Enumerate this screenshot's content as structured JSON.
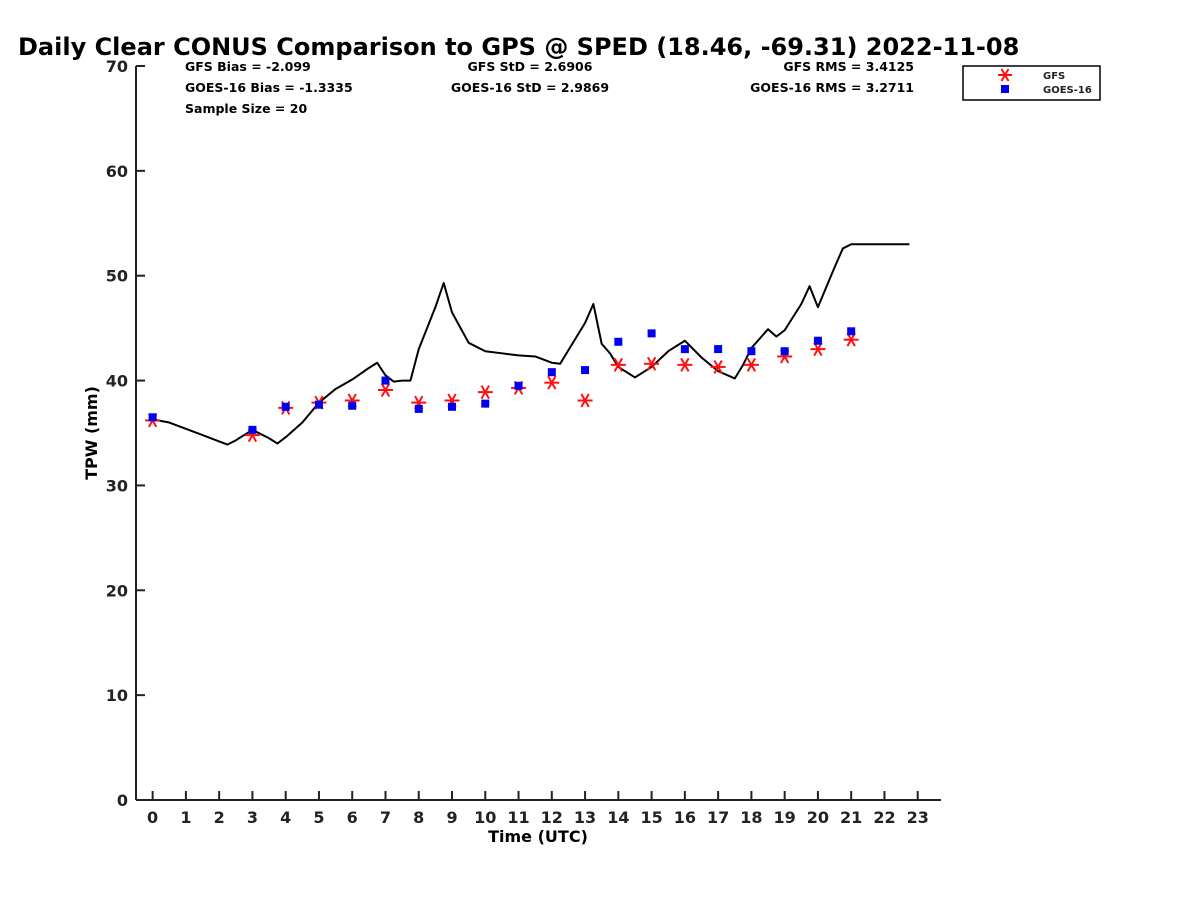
{
  "chart_data": {
    "type": "line",
    "title": "Daily Clear CONUS Comparison to GPS @ SPED (18.46, -69.31) 2022-11-08",
    "xlabel": "Time (UTC)",
    "ylabel": "TPW (mm)",
    "xlim": [
      -0.5,
      23.7
    ],
    "ylim": [
      0,
      70
    ],
    "xticks": [
      0,
      1,
      2,
      3,
      4,
      5,
      6,
      7,
      8,
      9,
      10,
      11,
      12,
      13,
      14,
      15,
      16,
      17,
      18,
      19,
      20,
      21,
      22,
      23
    ],
    "yticks": [
      0,
      10,
      20,
      30,
      40,
      50,
      60,
      70
    ],
    "grid": false,
    "legend_position": "top-right",
    "stats": {
      "gfs_bias": "GFS Bias = -2.099",
      "goes_bias": "GOES-16 Bias = -1.3335",
      "sample_size": "Sample Size = 20",
      "gfs_std": "GFS StD = 2.6906",
      "goes_std": "GOES-16 StD = 2.9869",
      "gfs_rms": "GFS RMS = 3.4125",
      "goes_rms": "GOES-16 RMS = 3.2711"
    },
    "series": [
      {
        "kind": "line",
        "color": "#000000",
        "x": [
          0,
          0.5,
          1,
          1.5,
          2,
          2.25,
          2.5,
          3,
          3.5,
          3.75,
          4,
          4.5,
          5,
          5.5,
          6,
          6.5,
          6.75,
          7,
          7.25,
          7.5,
          7.75,
          8,
          8.5,
          8.75,
          9,
          9.5,
          10,
          10.5,
          11,
          11.5,
          12,
          12.25,
          12.5,
          13,
          13.25,
          13.5,
          13.75,
          14,
          14.5,
          15,
          15.5,
          16,
          16.5,
          17,
          17.5,
          17.75,
          18,
          18.5,
          18.75,
          19,
          19.5,
          19.75,
          20,
          20.5,
          20.75,
          21,
          21.5,
          22,
          22.75
        ],
        "values": [
          36.3,
          36.0,
          35.4,
          34.8,
          34.2,
          33.9,
          34.3,
          35.3,
          34.5,
          34.0,
          34.6,
          36.0,
          37.9,
          39.2,
          40.1,
          41.2,
          41.7,
          40.5,
          39.9,
          40.0,
          40.0,
          43.0,
          47.0,
          49.3,
          46.5,
          43.6,
          42.8,
          42.6,
          42.4,
          42.3,
          41.7,
          41.6,
          42.9,
          45.5,
          47.3,
          43.5,
          42.6,
          41.3,
          40.3,
          41.3,
          42.8,
          43.8,
          42.2,
          40.9,
          40.2,
          41.5,
          43.1,
          44.9,
          44.2,
          44.8,
          47.3,
          49.0,
          47.0,
          50.8,
          52.6,
          53.0,
          53.0,
          53.0,
          53.0
        ]
      },
      {
        "name": "GFS",
        "kind": "scatter",
        "marker": "asterisk",
        "color": "#ff1010",
        "x": [
          0,
          3,
          4,
          5,
          6,
          7,
          8,
          9,
          10,
          11,
          12,
          13,
          14,
          15,
          16,
          17,
          18,
          19,
          20,
          21
        ],
        "values": [
          36.2,
          34.8,
          37.4,
          37.9,
          38.1,
          39.1,
          37.9,
          38.1,
          38.9,
          39.3,
          39.8,
          38.1,
          41.5,
          41.6,
          41.5,
          41.3,
          41.5,
          42.3,
          43.0,
          43.9
        ]
      },
      {
        "name": "GOES-16",
        "kind": "scatter",
        "marker": "square",
        "color": "#0000ee",
        "x": [
          0,
          3,
          4,
          5,
          6,
          7,
          8,
          9,
          10,
          11,
          12,
          13,
          14,
          15,
          16,
          17,
          18,
          19,
          20,
          21
        ],
        "values": [
          36.5,
          35.3,
          37.5,
          37.7,
          37.6,
          40.0,
          37.3,
          37.5,
          37.8,
          39.5,
          40.8,
          41.0,
          43.7,
          44.5,
          43.0,
          43.0,
          42.8,
          42.8,
          43.8,
          44.7
        ]
      }
    ],
    "legend": [
      {
        "label": "GFS",
        "marker": "asterisk",
        "color": "#ff1010"
      },
      {
        "label": "GOES-16",
        "marker": "square",
        "color": "#0000ee"
      }
    ]
  }
}
